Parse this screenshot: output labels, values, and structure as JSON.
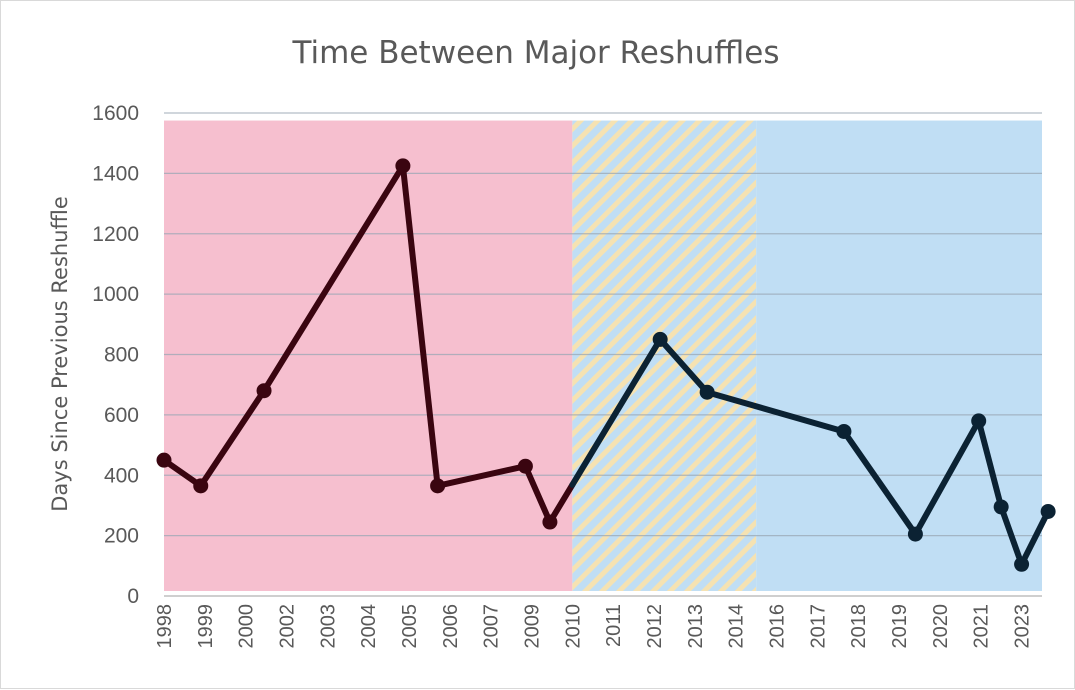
{
  "chart_data": {
    "type": "line",
    "title": "Time Between Major Reshuffles",
    "xlabel": "",
    "ylabel": "Days Since Previous Reshuffle",
    "ylim": [
      0,
      1600
    ],
    "yticks": [
      "0",
      "200",
      "400",
      "600",
      "800",
      "1000",
      "1200",
      "1400",
      "1600"
    ],
    "categories": [
      "1998",
      "1999",
      "2000",
      "2002",
      "2003",
      "2004",
      "2005",
      "2006",
      "2007",
      "2009",
      "2010",
      "2011",
      "2012",
      "2013",
      "2014",
      "2016",
      "2017",
      "2018",
      "2019",
      "2020",
      "2021",
      "2023"
    ],
    "series": [
      {
        "x": [
          0,
          0.9,
          2.45,
          5.85,
          6.7,
          8.85,
          9.45,
          12.15,
          13.3,
          16.65,
          18.4,
          19.95,
          20.5,
          21.0,
          21.65
        ],
        "values": [
          450,
          365,
          680,
          1425,
          365,
          430,
          245,
          850,
          675,
          545,
          205,
          580,
          295,
          105,
          280
        ]
      }
    ],
    "colors": {
      "line_early": "#3a0510",
      "line_late": "#0b2233",
      "band_red": "#f6bfcf",
      "band_blue": "#c0def4",
      "band_hatch": "#f5e2b2",
      "grid": "#9aa7b4"
    },
    "bands": [
      {
        "from": 0,
        "to": 10,
        "style": "red"
      },
      {
        "from": 10,
        "to": 14.5,
        "style": "hatched"
      },
      {
        "from": 14.5,
        "to": 21.75,
        "style": "blue"
      }
    ],
    "grid": true,
    "legend": "none"
  }
}
